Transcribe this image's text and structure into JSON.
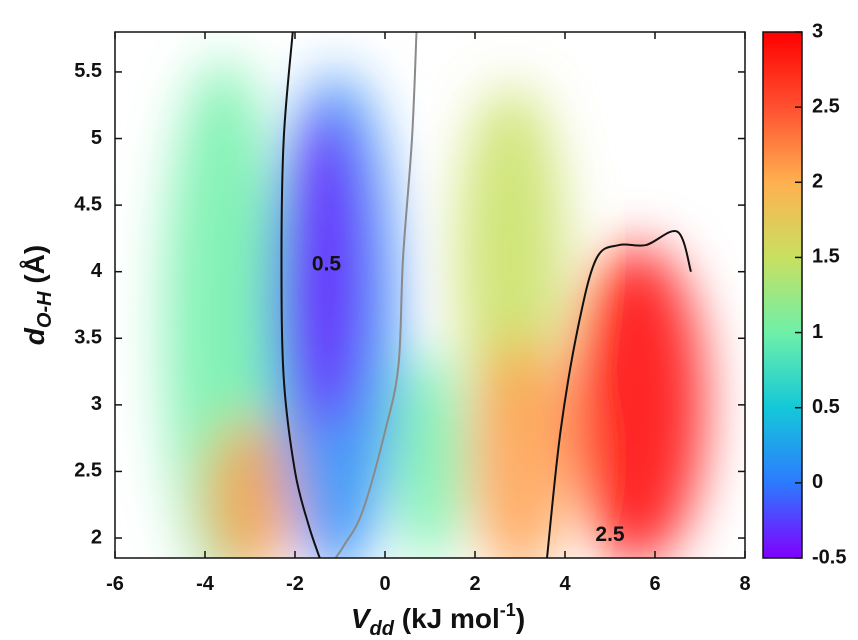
{
  "chart_data": {
    "type": "heatmap",
    "title": "",
    "xlabel": {
      "main": "V",
      "sub": "dd",
      "unit": " (kJ mol",
      "sup": "-1",
      "close": ")"
    },
    "ylabel": {
      "main": "d",
      "sub": "O-H",
      "unit": " (Å)"
    },
    "xlim": [
      -6,
      8
    ],
    "ylim": [
      1.85,
      5.8
    ],
    "xticks": [
      "-6",
      "-4",
      "-2",
      "0",
      "2",
      "4",
      "6",
      "8"
    ],
    "yticks": [
      "2",
      "2.5",
      "3",
      "3.5",
      "4",
      "4.5",
      "5",
      "5.5"
    ],
    "colorbar": {
      "range": [
        -0.5,
        3
      ],
      "ticks": [
        "-0.5",
        "0",
        "0.5",
        "1",
        "1.5",
        "2",
        "2.5",
        "3"
      ],
      "colors": [
        "#8000ff",
        "#2c7bff",
        "#14c8d8",
        "#6ef0a8",
        "#c8e060",
        "#ffb050",
        "#ff5030",
        "#ff0000"
      ]
    },
    "regions": [
      {
        "name": "cyan-band-left",
        "cx": -3.6,
        "cy": 3.6,
        "rx": 1.3,
        "ry": 2.0,
        "value": 1.0
      },
      {
        "name": "orange-band-left",
        "cx": -3.0,
        "cy": 2.3,
        "rx": 1.0,
        "ry": 0.6,
        "value": 2.1
      },
      {
        "name": "blue-well",
        "cx": -1.1,
        "cy": 3.6,
        "rx": 1.4,
        "ry": 1.9,
        "value": 0.1
      },
      {
        "name": "purple-core",
        "cx": -1.4,
        "cy": 4.0,
        "rx": 0.9,
        "ry": 1.2,
        "value": -0.4
      },
      {
        "name": "light-center",
        "cx": 1.0,
        "cy": 2.6,
        "rx": 0.8,
        "ry": 0.8,
        "value": 1.0
      },
      {
        "name": "green-band-right",
        "cx": 2.8,
        "cy": 4.1,
        "rx": 1.2,
        "ry": 1.3,
        "value": 1.5
      },
      {
        "name": "orange-band-right",
        "cx": 3.0,
        "cy": 2.6,
        "rx": 1.1,
        "ry": 0.9,
        "value": 2.1
      },
      {
        "name": "red-well",
        "cx": 5.6,
        "cy": 3.0,
        "rx": 1.5,
        "ry": 1.2,
        "value": 3.0
      }
    ],
    "contours": [
      {
        "name": "contour-0.5-left",
        "level": 0.5,
        "color": "#111111",
        "points": [
          [
            -2.05,
            5.8
          ],
          [
            -2.25,
            5.0
          ],
          [
            -2.3,
            4.1
          ],
          [
            -2.25,
            3.2
          ],
          [
            -2.0,
            2.5
          ],
          [
            -1.7,
            2.1
          ],
          [
            -1.45,
            1.85
          ]
        ]
      },
      {
        "name": "contour-0.5-right",
        "level": 0.5,
        "color": "#8a8a8a",
        "points": [
          [
            0.7,
            5.8
          ],
          [
            0.6,
            5.0
          ],
          [
            0.4,
            4.1
          ],
          [
            0.3,
            3.3
          ],
          [
            0.0,
            2.8
          ],
          [
            -0.5,
            2.2
          ],
          [
            -0.9,
            1.95
          ],
          [
            -1.1,
            1.85
          ]
        ]
      },
      {
        "name": "contour-2.5",
        "level": 2.5,
        "color": "#111111",
        "points": [
          [
            3.6,
            1.85
          ],
          [
            3.9,
            2.8
          ],
          [
            4.3,
            3.6
          ],
          [
            4.7,
            4.1
          ],
          [
            5.2,
            4.2
          ],
          [
            5.8,
            4.2
          ],
          [
            6.5,
            4.3
          ],
          [
            6.8,
            4.0
          ]
        ]
      }
    ],
    "annotations": [
      {
        "text": "0.5",
        "x": -1.3,
        "y": 4.05
      },
      {
        "text": "2.5",
        "x": 5.0,
        "y": 2.02
      }
    ]
  }
}
